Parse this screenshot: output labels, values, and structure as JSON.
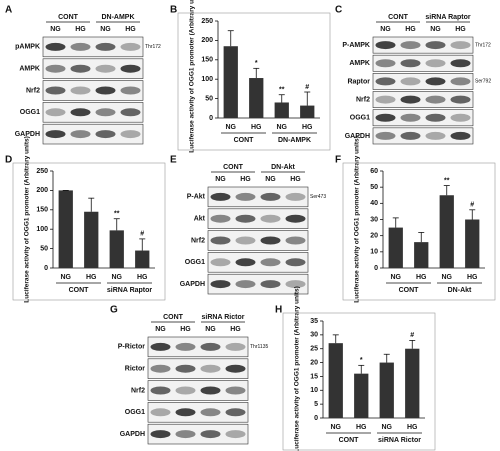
{
  "chart_data": [
    {
      "type": "bar",
      "panel": "B",
      "ylabel": "Luciferase activity of OGG1 promoter (Arbitrary units)",
      "categories": [
        "NG",
        "HG",
        "NG",
        "HG"
      ],
      "groups": [
        "CONT",
        "DN-AMPK"
      ],
      "values": [
        185,
        103,
        40,
        32
      ],
      "errors": [
        40,
        25,
        20,
        35
      ],
      "annotations": [
        null,
        "*",
        "**",
        "#"
      ],
      "color": "#333333",
      "ylim": [
        0,
        250
      ],
      "yticks": [
        0,
        50,
        100,
        150,
        200,
        250
      ]
    },
    {
      "type": "bar",
      "panel": "D",
      "ylabel": "Luciferase activity of OGG1 promoter (Arbitrary units)",
      "categories": [
        "NG",
        "HG",
        "NG",
        "HG"
      ],
      "groups": [
        "CONT",
        "siRNA Raptor"
      ],
      "values": [
        200,
        145,
        97,
        45
      ],
      "errors": [
        0,
        35,
        30,
        30
      ],
      "annotations": [
        null,
        null,
        "**",
        "#"
      ],
      "color": "#333333",
      "ylim": [
        0,
        250
      ],
      "yticks": [
        0,
        50,
        100,
        150,
        200,
        250
      ]
    },
    {
      "type": "bar",
      "panel": "F",
      "ylabel": "Luciferase activity of OGG1 promoter (Arbitrary units)",
      "categories": [
        "NG",
        "HG",
        "NG",
        "HG"
      ],
      "groups": [
        "CONT",
        "DN-Akt"
      ],
      "values": [
        25,
        16,
        45,
        30
      ],
      "errors": [
        6,
        6,
        6,
        6
      ],
      "annotations": [
        null,
        null,
        "**",
        "#"
      ],
      "color": "#333333",
      "ylim": [
        0,
        60
      ],
      "yticks": [
        0,
        10,
        20,
        30,
        40,
        50,
        60
      ]
    },
    {
      "type": "bar",
      "panel": "H",
      "ylabel": "Luciferase activity of OGG1 promoter (Arbitrary units)",
      "categories": [
        "NG",
        "HG",
        "NG",
        "HG"
      ],
      "groups": [
        "CONT",
        "siRNA Rictor"
      ],
      "values": [
        27,
        16,
        20,
        25
      ],
      "errors": [
        3,
        3,
        3,
        3
      ],
      "annotations": [
        null,
        "*",
        null,
        "#"
      ],
      "color": "#333333",
      "ylim": [
        0,
        35
      ],
      "yticks": [
        0,
        5,
        10,
        15,
        20,
        25,
        30,
        35
      ]
    }
  ],
  "blots": [
    {
      "panel": "A",
      "groups": [
        "CONT",
        "DN-AMPK"
      ],
      "lanes": [
        "NG",
        "HG",
        "NG",
        "HG"
      ],
      "rows": [
        {
          "label": "pAMPK",
          "site": "Thr172"
        },
        {
          "label": "AMPK"
        },
        {
          "label": "Nrf2"
        },
        {
          "label": "OGG1"
        },
        {
          "label": "GAPDH"
        }
      ]
    },
    {
      "panel": "C",
      "groups": [
        "CONT",
        "siRNA Raptor"
      ],
      "lanes": [
        "NG",
        "HG",
        "NG",
        "HG"
      ],
      "rows": [
        {
          "label": "P-AMPK",
          "site": "Thr172"
        },
        {
          "label": "AMPK"
        },
        {
          "label": "Raptor",
          "site": "Ser792"
        },
        {
          "label": "Nrf2"
        },
        {
          "label": "OGG1"
        },
        {
          "label": "GAPDH"
        }
      ]
    },
    {
      "panel": "E",
      "groups": [
        "CONT",
        "DN-Akt"
      ],
      "lanes": [
        "NG",
        "HG",
        "NG",
        "HG"
      ],
      "rows": [
        {
          "label": "P-Akt",
          "site": "Ser473"
        },
        {
          "label": "Akt"
        },
        {
          "label": "Nrf2"
        },
        {
          "label": "OGG1"
        },
        {
          "label": "GAPDH"
        }
      ]
    },
    {
      "panel": "G",
      "groups": [
        "CONT",
        "siRNA Rictor"
      ],
      "lanes": [
        "NG",
        "HG",
        "NG",
        "HG"
      ],
      "rows": [
        {
          "label": "P-Rictor",
          "site": "Thr1135"
        },
        {
          "label": "Rictor"
        },
        {
          "label": "Nrf2"
        },
        {
          "label": "OGG1"
        },
        {
          "label": "GAPDH"
        }
      ]
    }
  ]
}
